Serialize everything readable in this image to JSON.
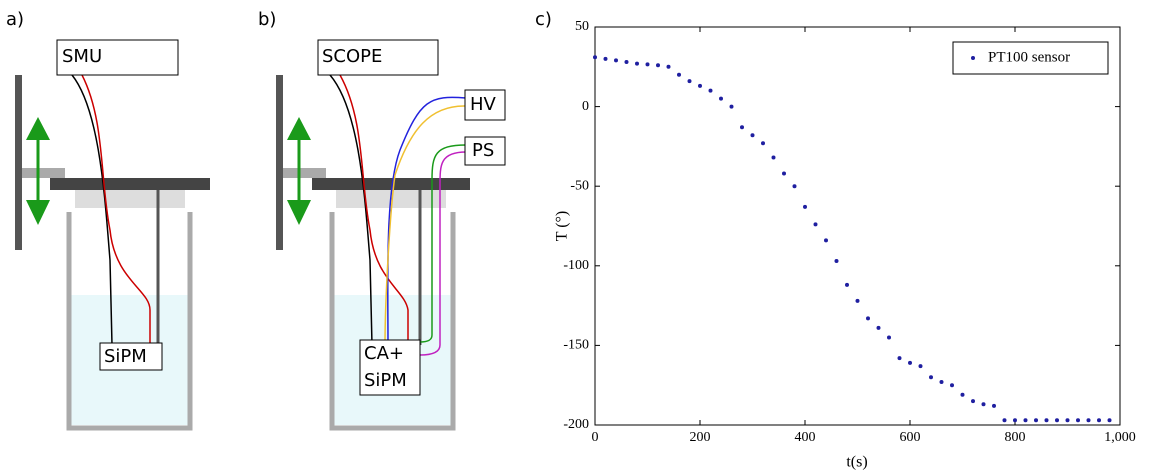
{
  "diagram_a": {
    "panel_label": "a)",
    "instrument": "SMU",
    "sensor": "SiPM"
  },
  "diagram_b": {
    "panel_label": "b)",
    "instrument": "SCOPE",
    "supply_hv": "HV",
    "supply_ps": "PS",
    "sensor_lines": [
      "CA+",
      "SiPM"
    ]
  },
  "chart_data": {
    "type": "scatter",
    "panel_label": "c)",
    "x_label": "t(s)",
    "y_label": "T (°)",
    "x": [
      0,
      20,
      40,
      60,
      80,
      100,
      120,
      140,
      160,
      180,
      200,
      220,
      240,
      260,
      280,
      300,
      320,
      340,
      360,
      380,
      400,
      420,
      440,
      460,
      480,
      500,
      520,
      540,
      560,
      580,
      600,
      620,
      640,
      660,
      680,
      700,
      720,
      740,
      760,
      780,
      800,
      820,
      840,
      860,
      880,
      900,
      920,
      940,
      960,
      980
    ],
    "series": [
      {
        "name": "PT100 sensor",
        "color": "#1f1fa0",
        "values": [
          31,
          30,
          29,
          28,
          27,
          26.5,
          26,
          25,
          20,
          16,
          13,
          10,
          5,
          0,
          -13,
          -18,
          -23,
          -32,
          -42,
          -50,
          -63,
          -74,
          -84,
          -97,
          -112,
          -122,
          -133,
          -139,
          -145,
          -158,
          -161,
          -163,
          -170,
          -173,
          -175,
          -181,
          -185,
          -187,
          -188,
          -197,
          -197,
          -197,
          -197,
          -197,
          -197,
          -197,
          -197,
          -197,
          -197,
          -197
        ]
      }
    ],
    "xlim": [
      0,
      1000
    ],
    "ylim": [
      -200,
      50
    ],
    "xticks": [
      0,
      200,
      400,
      600,
      800,
      {
        "value": 1000,
        "label": "1,000"
      }
    ],
    "yticks": [
      -200,
      -150,
      -100,
      -50,
      0,
      50
    ],
    "legend": "upper right"
  }
}
